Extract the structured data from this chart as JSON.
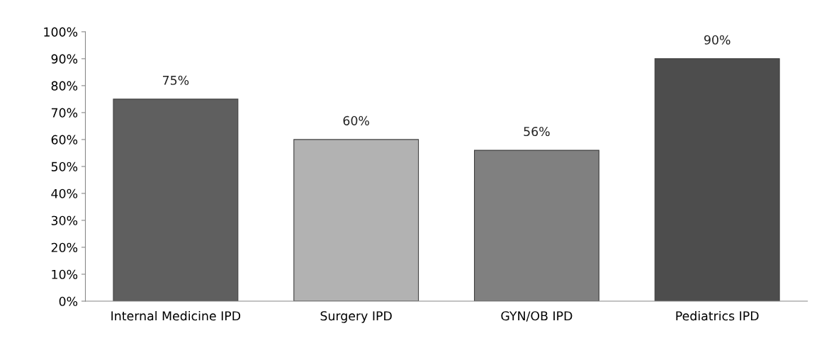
{
  "chart_data": {
    "type": "bar",
    "categories": [
      "Internal Medicine IPD",
      "Surgery IPD",
      "GYN/OB IPD",
      "Pediatrics IPD"
    ],
    "values": [
      75,
      60,
      56,
      90
    ],
    "colors": [
      "#5f5f5f",
      "#b2b2b2",
      "#808080",
      "#4d4d4d"
    ],
    "value_labels": [
      "75%",
      "60%",
      "56%",
      "90%"
    ],
    "ylim": [
      0,
      100
    ],
    "yticks": [
      {
        "value": 0,
        "label": "0%"
      },
      {
        "value": 10,
        "label": "10%"
      },
      {
        "value": 20,
        "label": "20%"
      },
      {
        "value": 30,
        "label": "30%"
      },
      {
        "value": 40,
        "label": "40%"
      },
      {
        "value": 50,
        "label": "50%"
      },
      {
        "value": 60,
        "label": "60%"
      },
      {
        "value": 70,
        "label": "70%"
      },
      {
        "value": 80,
        "label": "80%"
      },
      {
        "value": 90,
        "label": "90%"
      },
      {
        "value": 100,
        "label": "100%"
      }
    ],
    "grid": false,
    "legend": false
  }
}
